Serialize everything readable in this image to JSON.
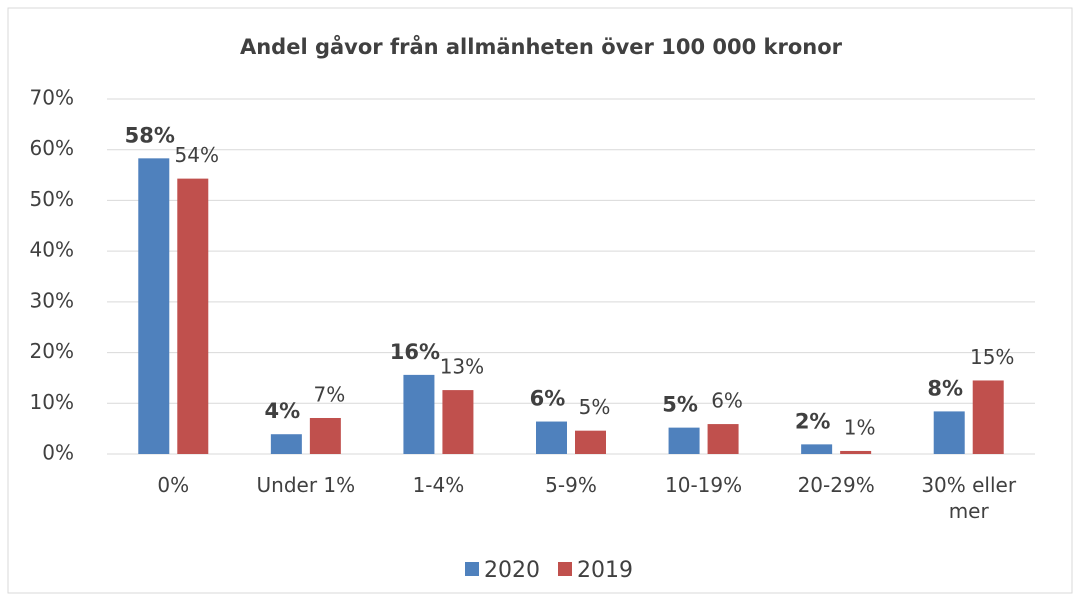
{
  "chart_data": {
    "type": "bar",
    "title": "Andel gåvor från allmänheten över 100 000 kronor",
    "categories": [
      "0%",
      "Under 1%",
      "1-4%",
      "5-9%",
      "10-19%",
      "20-29%",
      "30% eller mer"
    ],
    "series": [
      {
        "name": "2020",
        "color": "#4f81bd",
        "values": [
          58.3,
          3.9,
          15.6,
          6.4,
          5.2,
          1.9,
          8.4
        ],
        "value_labels": [
          "58%",
          "4%",
          "16%",
          "6%",
          "5%",
          "2%",
          "8%"
        ]
      },
      {
        "name": "2019",
        "color": "#c0504d",
        "values": [
          54.3,
          7.1,
          12.6,
          4.6,
          5.9,
          0.6,
          14.5
        ],
        "value_labels": [
          "54%",
          "7%",
          "13%",
          "5%",
          "6%",
          "1%",
          "15%"
        ]
      }
    ],
    "ylim": [
      0,
      70
    ],
    "yticks": [
      {
        "value": 0,
        "label": "0%"
      },
      {
        "value": 10,
        "label": "10%"
      },
      {
        "value": 20,
        "label": "20%"
      },
      {
        "value": 30,
        "label": "30%"
      },
      {
        "value": 40,
        "label": "40%"
      },
      {
        "value": 50,
        "label": "50%"
      },
      {
        "value": 60,
        "label": "60%"
      },
      {
        "value": 70,
        "label": "70%"
      }
    ],
    "grid": true,
    "legend": "bottom"
  }
}
